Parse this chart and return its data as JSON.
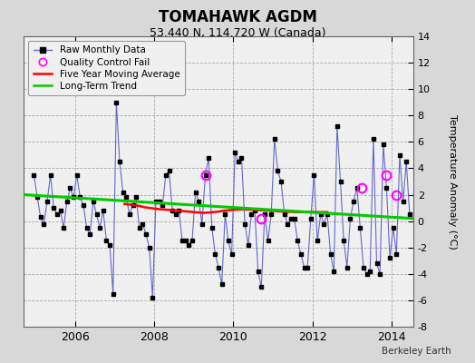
{
  "title": "TOMAHAWK AGDM",
  "subtitle": "53.440 N, 114.720 W (Canada)",
  "ylabel": "Temperature Anomaly (°C)",
  "watermark": "Berkeley Earth",
  "ylim": [
    -8,
    14
  ],
  "yticks": [
    -8,
    -6,
    -4,
    -2,
    0,
    2,
    4,
    6,
    8,
    10,
    12,
    14
  ],
  "xlim": [
    2004.7,
    2014.55
  ],
  "xticks": [
    2006,
    2008,
    2010,
    2012,
    2014
  ],
  "bg_color": "#d8d8d8",
  "plot_bg_color": "#f0f0f0",
  "raw_line_color": "#6666cc",
  "raw_marker_color": "#000000",
  "ma_color": "#ff0000",
  "trend_color": "#00cc00",
  "qc_color": "#ff00ff",
  "raw_data": {
    "times": [
      2004.958,
      2005.042,
      2005.125,
      2005.208,
      2005.292,
      2005.375,
      2005.458,
      2005.542,
      2005.625,
      2005.708,
      2005.792,
      2005.875,
      2005.958,
      2006.042,
      2006.125,
      2006.208,
      2006.292,
      2006.375,
      2006.458,
      2006.542,
      2006.625,
      2006.708,
      2006.792,
      2006.875,
      2006.958,
      2007.042,
      2007.125,
      2007.208,
      2007.292,
      2007.375,
      2007.458,
      2007.542,
      2007.625,
      2007.708,
      2007.792,
      2007.875,
      2007.958,
      2008.042,
      2008.125,
      2008.208,
      2008.292,
      2008.375,
      2008.458,
      2008.542,
      2008.625,
      2008.708,
      2008.792,
      2008.875,
      2008.958,
      2009.042,
      2009.125,
      2009.208,
      2009.292,
      2009.375,
      2009.458,
      2009.542,
      2009.625,
      2009.708,
      2009.792,
      2009.875,
      2009.958,
      2010.042,
      2010.125,
      2010.208,
      2010.292,
      2010.375,
      2010.458,
      2010.542,
      2010.625,
      2010.708,
      2010.792,
      2010.875,
      2010.958,
      2011.042,
      2011.125,
      2011.208,
      2011.292,
      2011.375,
      2011.458,
      2011.542,
      2011.625,
      2011.708,
      2011.792,
      2011.875,
      2011.958,
      2012.042,
      2012.125,
      2012.208,
      2012.292,
      2012.375,
      2012.458,
      2012.542,
      2012.625,
      2012.708,
      2012.792,
      2012.875,
      2012.958,
      2013.042,
      2013.125,
      2013.208,
      2013.292,
      2013.375,
      2013.458,
      2013.542,
      2013.625,
      2013.708,
      2013.792,
      2013.875,
      2013.958,
      2014.042,
      2014.125,
      2014.208,
      2014.292,
      2014.375,
      2014.458
    ],
    "values": [
      3.5,
      1.8,
      0.3,
      -0.2,
      1.5,
      3.5,
      1.0,
      0.5,
      0.8,
      -0.5,
      1.5,
      2.5,
      1.8,
      3.5,
      1.8,
      1.2,
      -0.5,
      -1.0,
      1.5,
      0.5,
      -0.5,
      0.8,
      -1.5,
      -1.8,
      -5.5,
      9.0,
      4.5,
      2.2,
      1.8,
      0.5,
      1.2,
      1.8,
      -0.5,
      -0.2,
      -1.0,
      -2.0,
      -5.8,
      1.5,
      1.5,
      1.2,
      3.5,
      3.8,
      0.8,
      0.5,
      0.8,
      -1.5,
      -1.5,
      -1.8,
      -1.5,
      2.2,
      1.5,
      -0.2,
      3.5,
      4.8,
      -0.5,
      -2.5,
      -3.5,
      -4.8,
      0.5,
      -1.5,
      -2.5,
      5.2,
      4.5,
      4.8,
      -0.2,
      -1.8,
      0.5,
      0.8,
      -3.8,
      -5.0,
      0.5,
      -1.5,
      0.5,
      6.2,
      3.8,
      3.0,
      0.5,
      -0.2,
      0.2,
      0.2,
      -1.5,
      -2.5,
      -3.5,
      -3.5,
      0.2,
      3.5,
      -1.5,
      0.5,
      -0.2,
      0.5,
      -2.5,
      -3.8,
      7.2,
      3.0,
      -1.5,
      -3.5,
      0.2,
      1.5,
      2.5,
      -0.5,
      -3.5,
      -4.0,
      -3.8,
      6.2,
      -3.2,
      -4.0,
      5.8,
      2.5,
      -2.8,
      -0.5,
      -2.5,
      5.0,
      1.5,
      4.5,
      0.5
    ]
  },
  "ma_data": {
    "times": [
      2007.25,
      2007.375,
      2007.5,
      2007.625,
      2007.75,
      2007.875,
      2008.0,
      2008.125,
      2008.25,
      2008.375,
      2008.5,
      2008.625,
      2008.75,
      2008.875,
      2009.0,
      2009.125,
      2009.25,
      2009.375,
      2009.5,
      2009.625,
      2009.75,
      2009.875,
      2010.0,
      2010.125,
      2010.25,
      2010.375,
      2010.5,
      2010.625,
      2010.75,
      2010.875,
      2011.0,
      2011.125,
      2011.25,
      2011.375,
      2011.5,
      2011.625,
      2011.75,
      2011.875,
      2012.0,
      2012.125,
      2012.25,
      2012.375
    ],
    "values": [
      1.3,
      1.25,
      1.2,
      1.15,
      1.05,
      1.0,
      0.95,
      0.9,
      0.88,
      0.85,
      0.82,
      0.78,
      0.75,
      0.72,
      0.68,
      0.65,
      0.62,
      0.65,
      0.68,
      0.72,
      0.78,
      0.82,
      0.85,
      0.88,
      0.9,
      0.88,
      0.85,
      0.82,
      0.82,
      0.8,
      0.78,
      0.75,
      0.72,
      0.7,
      0.7,
      0.68,
      0.68,
      0.68,
      0.68,
      0.68,
      0.68,
      0.68
    ]
  },
  "trend_data": {
    "times": [
      2004.7,
      2014.55
    ],
    "values": [
      2.0,
      0.2
    ]
  },
  "qc_fails": {
    "times": [
      2009.292,
      2010.708,
      2013.25,
      2013.875,
      2014.125
    ],
    "values": [
      3.5,
      0.2,
      2.5,
      3.5,
      2.0
    ]
  }
}
